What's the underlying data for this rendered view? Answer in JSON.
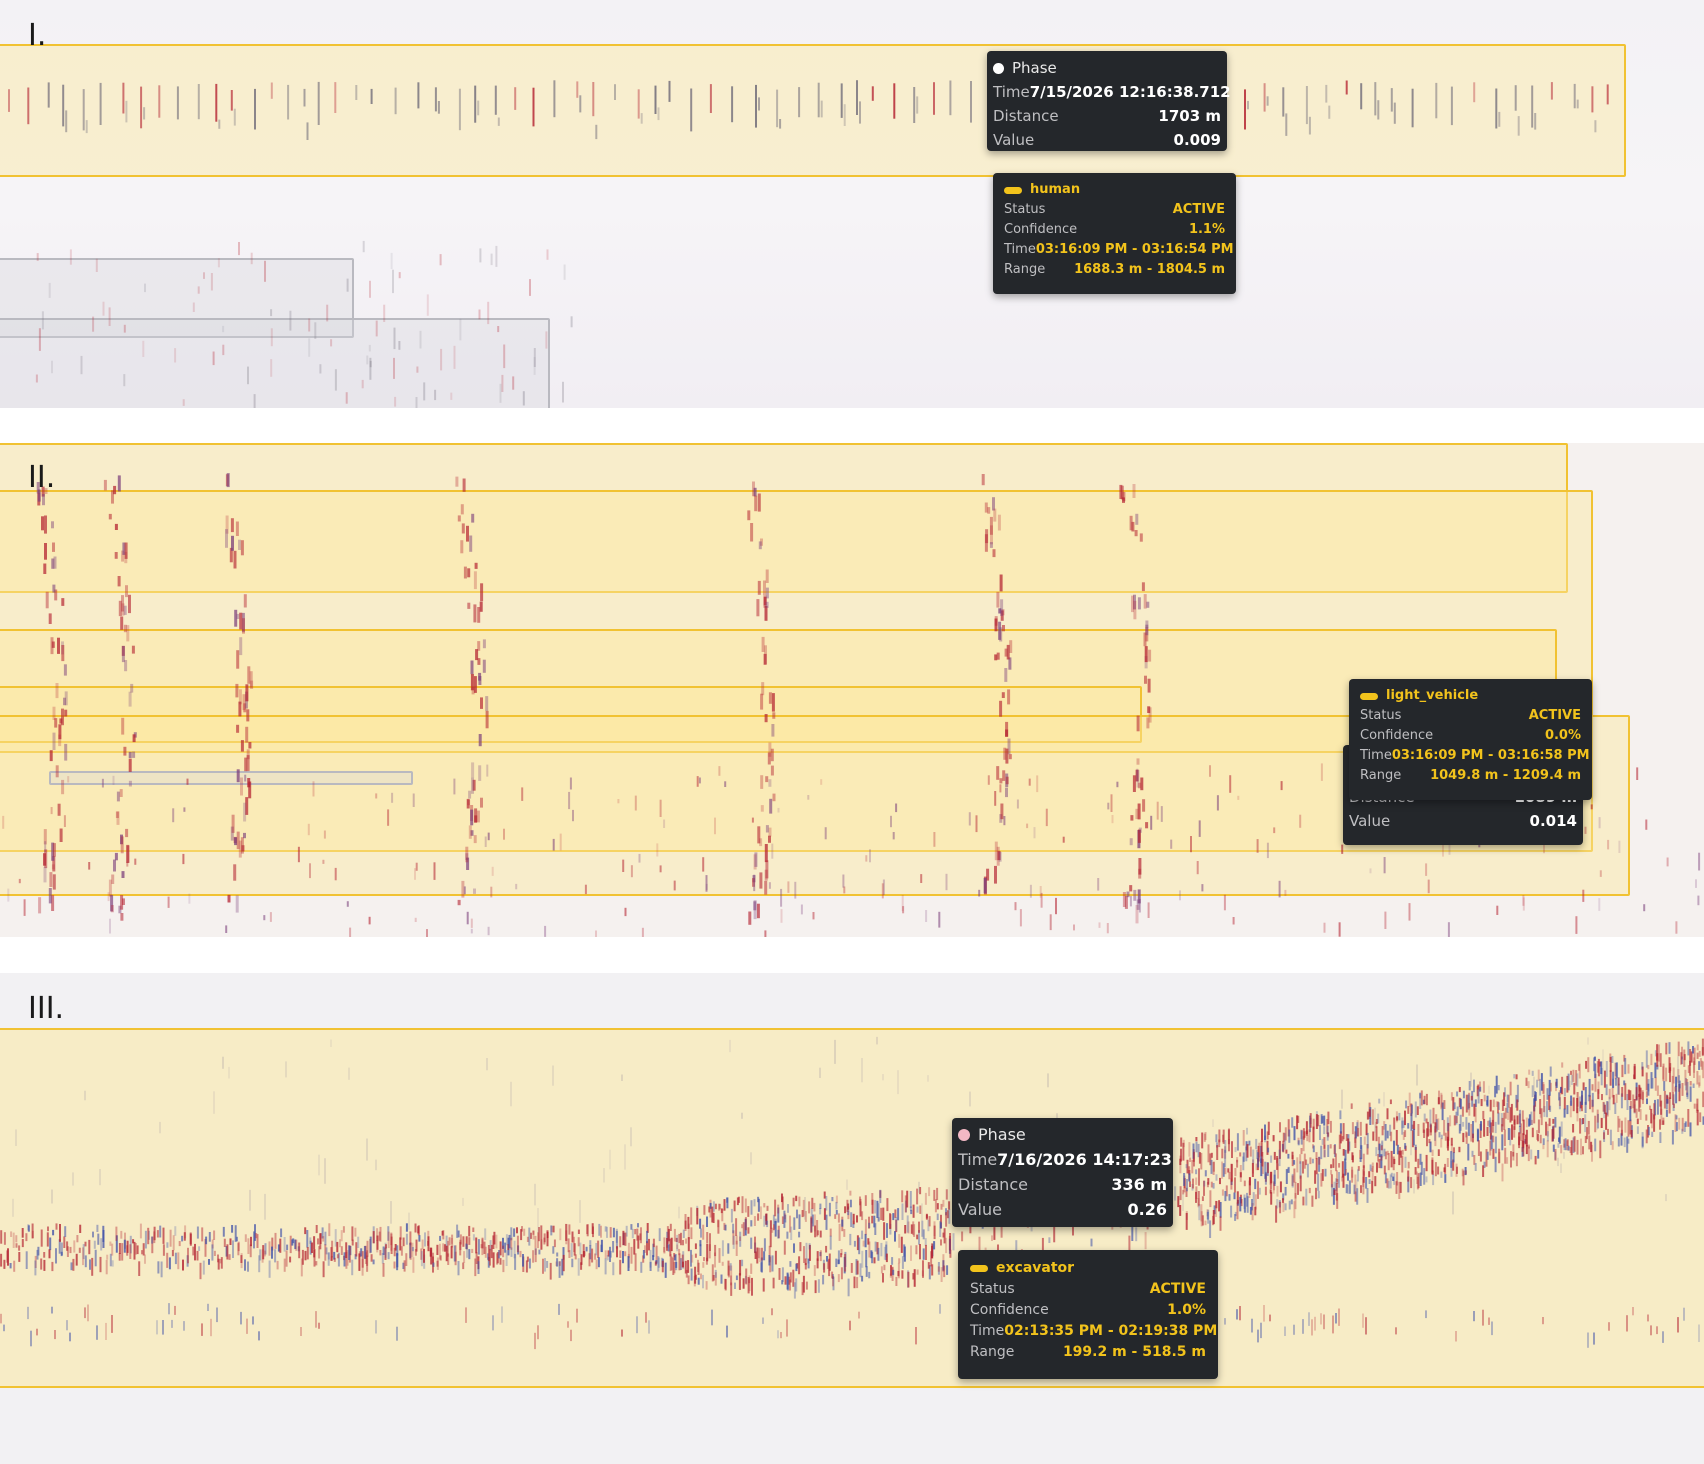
{
  "panels": [
    {
      "label": "I.",
      "phase_tooltip": {
        "title": "Phase",
        "time_label": "Time",
        "time_value": "7/15/2026 12:16:38.712",
        "distance_label": "Distance",
        "distance_value": "1703 m",
        "value_label": "Value",
        "value_value": "0.009",
        "dot_color": "#ffffff"
      },
      "detection_tooltip": {
        "class_name": "human",
        "status_label": "Status",
        "status_value": "ACTIVE",
        "confidence_label": "Confidence",
        "confidence_value": "1.1%",
        "time_label": "Time",
        "time_value": "03:16:09 PM - 03:16:54 PM",
        "range_label": "Range",
        "range_value": "1688.3 m - 1804.5 m"
      }
    },
    {
      "label": "II.",
      "phase_tooltip": {
        "distance_label": "Distance",
        "distance_value": "1089 m",
        "value_label": "Value",
        "value_value": "0.014"
      },
      "detection_tooltip": {
        "class_name": "light_vehicle",
        "status_label": "Status",
        "status_value": "ACTIVE",
        "confidence_label": "Confidence",
        "confidence_value": "0.0%",
        "time_label": "Time",
        "time_value": "03:16:09 PM - 03:16:58 PM",
        "range_label": "Range",
        "range_value": "1049.8 m - 1209.4 m"
      }
    },
    {
      "label": "III.",
      "phase_tooltip": {
        "title": "Phase",
        "time_label": "Time",
        "time_value": "7/16/2026 14:17:23",
        "distance_label": "Distance",
        "distance_value": "336 m",
        "value_label": "Value",
        "value_value": "0.26",
        "dot_color": "#f3b8c4"
      },
      "detection_tooltip": {
        "class_name": "excavator",
        "status_label": "Status",
        "status_value": "ACTIVE",
        "confidence_label": "Confidence",
        "confidence_value": "1.0%",
        "time_label": "Time",
        "time_value": "02:13:35 PM - 02:19:38 PM",
        "range_label": "Range",
        "range_value": "199.2 m - 518.5 m"
      }
    }
  ],
  "colors": {
    "detection_box": "#f1c232",
    "tooltip_bg": "#24272b",
    "accent": "#f2c31c",
    "signal_red": "#b3202f",
    "signal_blue": "#3d4fa8"
  }
}
